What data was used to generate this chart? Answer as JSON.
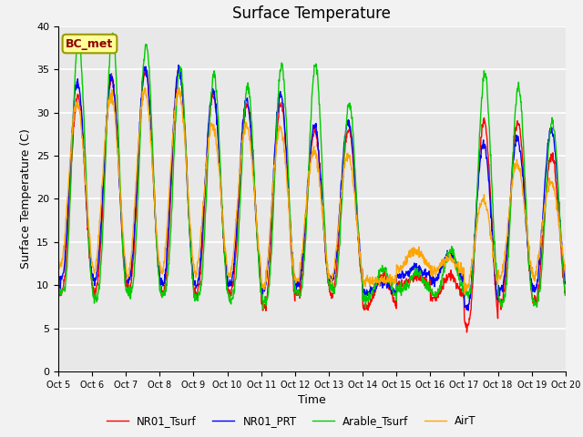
{
  "title": "Surface Temperature",
  "xlabel": "Time",
  "ylabel": "Surface Temperature (C)",
  "ylim": [
    0,
    40
  ],
  "annotation_text": "BC_met",
  "annotation_color": "#8B0000",
  "annotation_bg": "#FFFF99",
  "bg_color": "#E8E8E8",
  "fig_bg_color": "#F2F2F2",
  "grid_color": "white",
  "line_colors": {
    "NR01_Tsurf": "#FF0000",
    "NR01_PRT": "#0000FF",
    "Arable_Tsurf": "#00CC00",
    "AirT": "#FFA500"
  },
  "line_width": 1.0,
  "tick_labels": [
    "Oct 5",
    "Oct 6",
    "Oct 7",
    "Oct 8",
    "Oct 9",
    "Oct 10",
    "Oct 11",
    "Oct 12",
    "Oct 13",
    "Oct 14",
    "Oct 15",
    "Oct 16",
    "Oct 17",
    "Oct 18",
    "Oct 19",
    "Oct 20"
  ],
  "tick_positions": [
    0,
    1,
    2,
    3,
    4,
    5,
    6,
    7,
    8,
    9,
    10,
    11,
    12,
    13,
    14,
    15
  ],
  "yticks": [
    0,
    5,
    10,
    15,
    20,
    25,
    30,
    35,
    40
  ]
}
